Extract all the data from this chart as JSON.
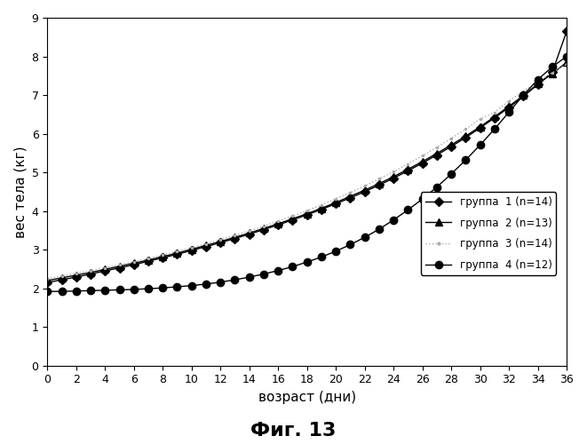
{
  "title": "",
  "xlabel": "возраст (дни)",
  "ylabel": "вес тела (кг)",
  "caption": "Фиг. 13",
  "xlim": [
    0,
    36
  ],
  "ylim": [
    0,
    9
  ],
  "xticks": [
    0,
    2,
    4,
    6,
    8,
    10,
    12,
    14,
    16,
    18,
    20,
    22,
    24,
    26,
    28,
    30,
    32,
    34,
    36
  ],
  "yticks": [
    0,
    1,
    2,
    3,
    4,
    5,
    6,
    7,
    8,
    9
  ],
  "groups": [
    {
      "label": "группа  1 (n=14)",
      "color": "#000000",
      "linestyle": "solid",
      "marker": "D",
      "markersize": 5,
      "linewidth": 1.0,
      "x": [
        0,
        1,
        2,
        3,
        4,
        5,
        6,
        7,
        8,
        9,
        10,
        11,
        12,
        13,
        14,
        15,
        16,
        17,
        18,
        19,
        20,
        21,
        22,
        23,
        24,
        25,
        26,
        27,
        28,
        29,
        30,
        31,
        32,
        33,
        34,
        35,
        36
      ],
      "y": [
        2.15,
        2.22,
        2.29,
        2.37,
        2.45,
        2.53,
        2.61,
        2.7,
        2.79,
        2.88,
        2.98,
        3.08,
        3.18,
        3.29,
        3.4,
        3.52,
        3.64,
        3.77,
        3.9,
        4.04,
        4.19,
        4.34,
        4.5,
        4.67,
        4.85,
        5.04,
        5.24,
        5.45,
        5.67,
        5.9,
        6.15,
        6.41,
        6.68,
        6.97,
        7.27,
        7.59,
        8.65
      ]
    },
    {
      "label": "группа  2 (n=13)",
      "color": "#000000",
      "linestyle": "solid",
      "marker": "^",
      "markersize": 6,
      "linewidth": 1.0,
      "x": [
        0,
        1,
        2,
        3,
        4,
        5,
        6,
        7,
        8,
        9,
        10,
        11,
        12,
        13,
        14,
        15,
        16,
        17,
        18,
        19,
        20,
        21,
        22,
        23,
        24,
        25,
        26,
        27,
        28,
        29,
        30,
        31,
        32,
        33,
        34,
        35,
        36
      ],
      "y": [
        2.2,
        2.27,
        2.34,
        2.41,
        2.49,
        2.57,
        2.65,
        2.73,
        2.82,
        2.91,
        3.01,
        3.11,
        3.21,
        3.32,
        3.43,
        3.55,
        3.67,
        3.8,
        3.93,
        4.07,
        4.22,
        4.38,
        4.54,
        4.71,
        4.89,
        5.08,
        5.28,
        5.49,
        5.71,
        5.94,
        6.18,
        6.44,
        6.71,
        6.99,
        7.29,
        7.55,
        7.85
      ]
    },
    {
      "label": "группа  3 (n=14)",
      "color": "#aaaaaa",
      "linestyle": "dotted",
      "marker": ".",
      "markersize": 3,
      "linewidth": 1.0,
      "x": [
        0,
        1,
        2,
        3,
        4,
        5,
        6,
        7,
        8,
        9,
        10,
        11,
        12,
        13,
        14,
        15,
        16,
        17,
        18,
        19,
        20,
        21,
        22,
        23,
        24,
        25,
        26,
        27,
        28,
        29,
        30,
        31,
        32,
        33,
        34,
        35,
        36
      ],
      "y": [
        2.25,
        2.32,
        2.39,
        2.46,
        2.53,
        2.61,
        2.69,
        2.77,
        2.86,
        2.95,
        3.05,
        3.15,
        3.26,
        3.37,
        3.49,
        3.61,
        3.74,
        3.87,
        4.01,
        4.16,
        4.32,
        4.48,
        4.65,
        4.83,
        5.02,
        5.22,
        5.43,
        5.65,
        5.88,
        6.12,
        6.38,
        6.55,
        6.85,
        7.1,
        7.35,
        7.58,
        7.8
      ]
    },
    {
      "label": "группа  4 (n=12)",
      "color": "#000000",
      "linestyle": "solid",
      "marker": "o",
      "markersize": 6,
      "linewidth": 1.0,
      "x": [
        0,
        1,
        2,
        3,
        4,
        5,
        6,
        7,
        8,
        9,
        10,
        11,
        12,
        13,
        14,
        15,
        16,
        17,
        18,
        19,
        20,
        21,
        22,
        23,
        24,
        25,
        26,
        27,
        28,
        29,
        30,
        31,
        32,
        33,
        34,
        35,
        36
      ],
      "y": [
        1.92,
        1.92,
        1.93,
        1.94,
        1.95,
        1.96,
        1.97,
        1.99,
        2.01,
        2.04,
        2.07,
        2.11,
        2.16,
        2.22,
        2.29,
        2.37,
        2.46,
        2.56,
        2.68,
        2.81,
        2.96,
        3.13,
        3.32,
        3.53,
        3.77,
        4.03,
        4.31,
        4.62,
        4.96,
        5.32,
        5.71,
        6.12,
        6.56,
        7.0,
        7.4,
        7.73,
        8.0
      ]
    }
  ],
  "background_color": "#ffffff",
  "caption_fontsize": 16,
  "axis_fontsize": 11,
  "tick_fontsize": 9
}
